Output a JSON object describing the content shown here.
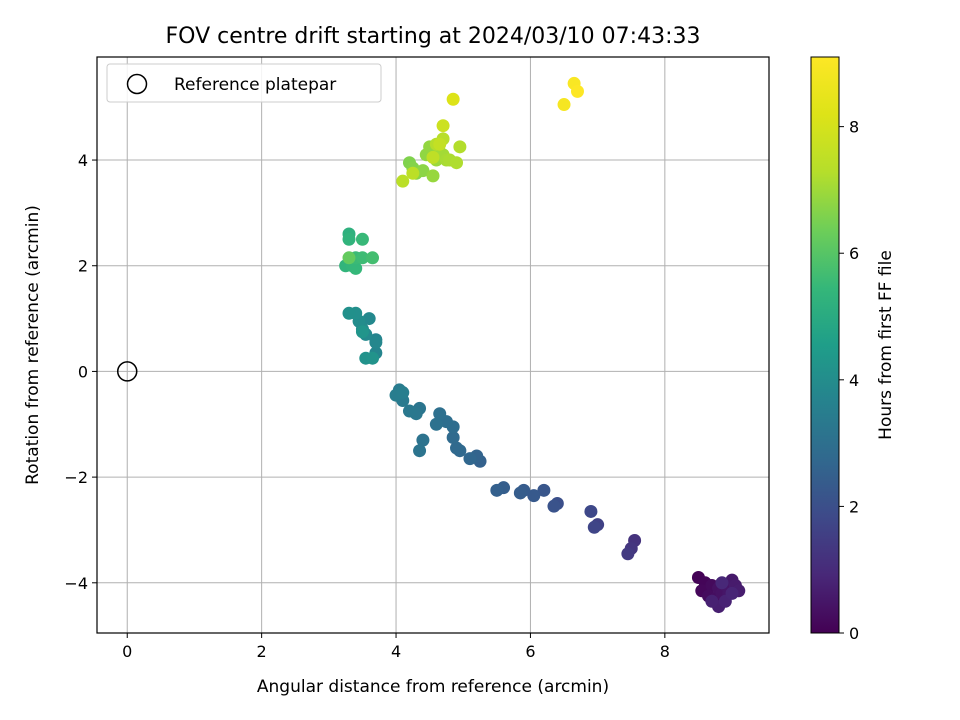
{
  "chart_data": {
    "type": "scatter",
    "title": "FOV centre drift starting at 2024/03/10 07:43:33",
    "xlabel": "Angular distance from reference (arcmin)",
    "ylabel": "Rotation from reference (arcmin)",
    "xlim": [
      -0.45,
      9.55
    ],
    "ylim": [
      -4.95,
      5.95
    ],
    "xticks": [
      0,
      2,
      4,
      6,
      8
    ],
    "yticks": [
      -4,
      -2,
      0,
      2,
      4
    ],
    "grid": true,
    "legend": {
      "position": "upper-left",
      "entries": [
        "Reference platepar"
      ]
    },
    "reference_point": {
      "x": 0,
      "y": 0,
      "label": "Reference platepar"
    },
    "colorbar": {
      "label": "Hours from first FF file",
      "colormap": "viridis",
      "range": [
        0,
        9.1
      ],
      "ticks": [
        0,
        2,
        4,
        6,
        8
      ]
    },
    "points": [
      [
        8.5,
        -3.9,
        0.05
      ],
      [
        8.6,
        -4.0,
        0.1
      ],
      [
        8.55,
        -4.15,
        0.15
      ],
      [
        8.7,
        -4.05,
        0.2
      ],
      [
        8.65,
        -4.25,
        0.25
      ],
      [
        8.75,
        -4.3,
        0.3
      ],
      [
        8.8,
        -4.1,
        0.35
      ],
      [
        8.85,
        -4.2,
        0.4
      ],
      [
        8.9,
        -4.05,
        0.45
      ],
      [
        8.95,
        -4.2,
        0.5
      ],
      [
        9.0,
        -3.95,
        0.55
      ],
      [
        9.05,
        -4.05,
        0.6
      ],
      [
        9.1,
        -4.15,
        0.65
      ],
      [
        8.8,
        -4.45,
        0.7
      ],
      [
        8.7,
        -4.35,
        0.75
      ],
      [
        8.9,
        -4.35,
        0.8
      ],
      [
        9.0,
        -4.2,
        0.85
      ],
      [
        8.85,
        -4.0,
        0.9
      ],
      [
        7.55,
        -3.2,
        1.2
      ],
      [
        7.5,
        -3.35,
        1.3
      ],
      [
        7.45,
        -3.45,
        1.4
      ],
      [
        7.0,
        -2.9,
        1.6
      ],
      [
        6.95,
        -2.95,
        1.7
      ],
      [
        6.9,
        -2.65,
        1.8
      ],
      [
        6.4,
        -2.5,
        2.0
      ],
      [
        6.35,
        -2.55,
        2.1
      ],
      [
        6.2,
        -2.25,
        2.2
      ],
      [
        6.05,
        -2.35,
        2.3
      ],
      [
        5.9,
        -2.25,
        2.35
      ],
      [
        5.85,
        -2.3,
        2.4
      ],
      [
        5.6,
        -2.2,
        2.45
      ],
      [
        5.5,
        -2.25,
        2.5
      ],
      [
        5.25,
        -1.7,
        2.55
      ],
      [
        5.2,
        -1.6,
        2.6
      ],
      [
        5.1,
        -1.65,
        2.7
      ],
      [
        4.95,
        -1.5,
        2.75
      ],
      [
        4.9,
        -1.45,
        2.8
      ],
      [
        4.85,
        -1.25,
        2.85
      ],
      [
        4.85,
        -1.05,
        2.9
      ],
      [
        4.75,
        -0.95,
        2.95
      ],
      [
        4.65,
        -0.8,
        3.0
      ],
      [
        4.6,
        -1.0,
        3.05
      ],
      [
        4.4,
        -1.3,
        3.1
      ],
      [
        4.35,
        -1.5,
        3.15
      ],
      [
        4.35,
        -0.7,
        3.2
      ],
      [
        4.3,
        -0.8,
        3.25
      ],
      [
        4.2,
        -0.75,
        3.3
      ],
      [
        4.1,
        -0.55,
        3.35
      ],
      [
        4.05,
        -0.35,
        3.4
      ],
      [
        4.0,
        -0.45,
        3.45
      ],
      [
        4.1,
        -0.4,
        3.5
      ],
      [
        3.7,
        0.6,
        3.7
      ],
      [
        3.7,
        0.35,
        3.75
      ],
      [
        3.7,
        0.55,
        3.8
      ],
      [
        3.6,
        1.0,
        3.85
      ],
      [
        3.55,
        0.7,
        3.9
      ],
      [
        3.5,
        0.8,
        3.95
      ],
      [
        3.45,
        0.95,
        4.0
      ],
      [
        3.4,
        1.1,
        4.05
      ],
      [
        3.3,
        1.1,
        4.1
      ],
      [
        3.55,
        0.25,
        4.15
      ],
      [
        3.65,
        0.25,
        4.2
      ],
      [
        3.5,
        0.75,
        4.25
      ],
      [
        3.3,
        2.6,
        5.2
      ],
      [
        3.3,
        2.5,
        5.3
      ],
      [
        3.25,
        2.0,
        5.35
      ],
      [
        3.35,
        2.0,
        5.4
      ],
      [
        3.4,
        1.95,
        5.45
      ],
      [
        3.5,
        2.5,
        5.5
      ],
      [
        3.4,
        2.15,
        5.55
      ],
      [
        3.5,
        2.15,
        5.6
      ],
      [
        3.65,
        2.15,
        5.7
      ],
      [
        3.3,
        2.15,
        6.2
      ],
      [
        4.2,
        3.95,
        6.6
      ],
      [
        4.25,
        3.85,
        6.65
      ],
      [
        4.3,
        3.75,
        6.7
      ],
      [
        4.4,
        3.8,
        6.75
      ],
      [
        4.45,
        4.1,
        6.8
      ],
      [
        4.5,
        4.25,
        6.85
      ],
      [
        4.55,
        3.7,
        6.9
      ],
      [
        4.6,
        4.0,
        6.95
      ],
      [
        4.65,
        4.15,
        7.0
      ],
      [
        4.7,
        4.1,
        7.05
      ],
      [
        4.75,
        4.0,
        7.1
      ],
      [
        4.8,
        4.0,
        7.15
      ],
      [
        4.9,
        3.95,
        7.2
      ],
      [
        4.95,
        4.25,
        7.25
      ],
      [
        4.6,
        4.3,
        7.3
      ],
      [
        4.7,
        4.4,
        7.35
      ],
      [
        4.1,
        3.6,
        7.4
      ],
      [
        4.25,
        3.75,
        7.45
      ],
      [
        4.55,
        4.05,
        7.5
      ],
      [
        4.65,
        4.3,
        7.6
      ],
      [
        4.7,
        4.65,
        7.8
      ],
      [
        4.85,
        5.15,
        8.2
      ],
      [
        6.5,
        5.05,
        8.9
      ],
      [
        6.65,
        5.45,
        9.0
      ],
      [
        6.7,
        5.3,
        9.1
      ]
    ]
  }
}
